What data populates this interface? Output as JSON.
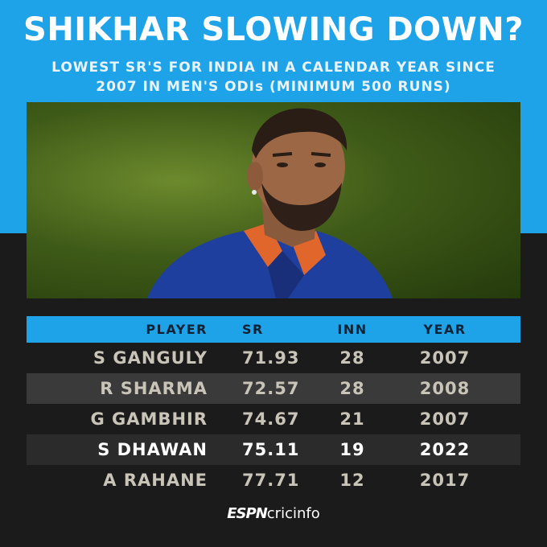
{
  "header": {
    "title": "SHIKHAR SLOWING DOWN?",
    "subtitle_line1": "LOWEST SR'S FOR INDIA IN A CALENDAR YEAR SINCE",
    "subtitle_line2": "2007 IN MEN'S ODIs (MINIMUM 500 RUNS)"
  },
  "table": {
    "headers": {
      "player": "PLAYER",
      "sr": "SR",
      "inn": "INN",
      "year": "YEAR"
    },
    "rows": [
      {
        "player": "S GANGULY",
        "sr": "71.93",
        "inn": "28",
        "year": "2007"
      },
      {
        "player": "R SHARMA",
        "sr": "72.57",
        "inn": "28",
        "year": "2008"
      },
      {
        "player": "G GAMBHIR",
        "sr": "74.67",
        "inn": "21",
        "year": "2007"
      },
      {
        "player": "S DHAWAN",
        "sr": "75.11",
        "inn": "19",
        "year": "2022"
      },
      {
        "player": "A RAHANE",
        "sr": "77.71",
        "inn": "12",
        "year": "2017"
      }
    ]
  },
  "footer": {
    "logo_espn": "ESPN",
    "logo_cricinfo": "cricinfo"
  },
  "colors": {
    "accent_blue": "#1fa3e8",
    "background_dark": "#1b1b1b",
    "highlight_text": "#ffffff"
  }
}
